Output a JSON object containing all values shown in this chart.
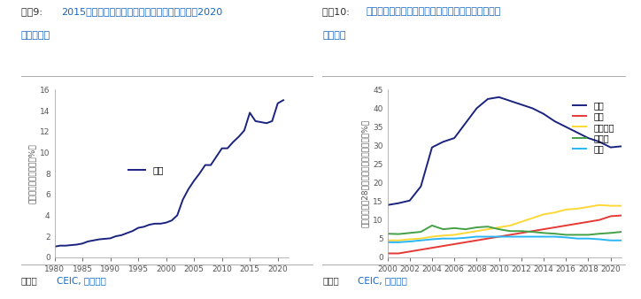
{
  "chart1": {
    "title_prefix": "图表9: ",
    "title_blue": "2015年后中国出口占全球出口的份额高位企稳，2020",
    "title_blue2": "年重拾反弹",
    "ylabel": "中国占全球市场份额（%）",
    "source_black": "来源：",
    "source_blue": "CEIC, 瑞银估算",
    "legend_label": "出口",
    "line_color": "#1a237e",
    "years": [
      1980,
      1981,
      1982,
      1983,
      1984,
      1985,
      1986,
      1987,
      1988,
      1989,
      1990,
      1991,
      1992,
      1993,
      1994,
      1995,
      1996,
      1997,
      1998,
      1999,
      2000,
      2001,
      2002,
      2003,
      2004,
      2005,
      2006,
      2007,
      2008,
      2009,
      2010,
      2011,
      2012,
      2013,
      2014,
      2015,
      2016,
      2017,
      2018,
      2019,
      2020,
      2021
    ],
    "values": [
      1.0,
      1.1,
      1.1,
      1.15,
      1.2,
      1.3,
      1.5,
      1.6,
      1.7,
      1.75,
      1.8,
      2.0,
      2.1,
      2.3,
      2.5,
      2.8,
      2.9,
      3.1,
      3.2,
      3.2,
      3.3,
      3.5,
      4.0,
      5.5,
      6.5,
      7.3,
      8.0,
      8.8,
      8.8,
      9.6,
      10.4,
      10.4,
      11.0,
      11.5,
      12.1,
      13.8,
      13.0,
      12.9,
      12.8,
      13.0,
      14.7,
      15.0
    ],
    "ylim": [
      0,
      16
    ],
    "yticks": [
      0,
      2,
      4,
      6,
      8,
      10,
      12,
      14,
      16
    ],
    "xlim": [
      1980,
      2022
    ],
    "xticks": [
      1980,
      1985,
      1990,
      1995,
      2000,
      2005,
      2010,
      2015,
      2020
    ]
  },
  "chart2": {
    "title_prefix": "图表10: ",
    "title_blue": "中国丧失服装市场份额，而越南和孟加拉国市场份额",
    "title_blue2": "有所上升",
    "ylabel": "在美国和欧盟28国服装进口市场中的份额（%）",
    "source_black": "来源：",
    "source_blue": "CEIC, 瑞银估算",
    "ylim": [
      0,
      45
    ],
    "yticks": [
      0,
      5,
      10,
      15,
      20,
      25,
      30,
      35,
      40,
      45
    ],
    "xlim": [
      2000,
      2021
    ],
    "xticks": [
      2000,
      2002,
      2004,
      2006,
      2008,
      2010,
      2012,
      2014,
      2016,
      2018,
      2020
    ],
    "series": {
      "中国": {
        "color": "#1a237e",
        "years": [
          2000,
          2001,
          2002,
          2003,
          2004,
          2005,
          2006,
          2007,
          2008,
          2009,
          2010,
          2011,
          2012,
          2013,
          2014,
          2015,
          2016,
          2017,
          2018,
          2019,
          2020,
          2021
        ],
        "values": [
          14.0,
          14.5,
          15.2,
          19.0,
          29.5,
          31.0,
          32.0,
          36.0,
          40.0,
          42.5,
          43.0,
          42.0,
          41.0,
          40.0,
          38.5,
          36.5,
          35.0,
          33.5,
          32.0,
          31.0,
          29.5,
          29.8
        ]
      },
      "越南": {
        "color": "#e53935",
        "years": [
          2000,
          2001,
          2002,
          2003,
          2004,
          2005,
          2006,
          2007,
          2008,
          2009,
          2010,
          2011,
          2012,
          2013,
          2014,
          2015,
          2016,
          2017,
          2018,
          2019,
          2020,
          2021
        ],
        "values": [
          1.0,
          1.0,
          1.5,
          2.0,
          2.5,
          3.0,
          3.5,
          4.0,
          4.5,
          5.0,
          5.5,
          6.0,
          6.5,
          7.0,
          7.5,
          8.0,
          8.5,
          9.0,
          9.5,
          10.0,
          11.0,
          11.2
        ]
      },
      "孟加拉国": {
        "color": "#fdd835",
        "years": [
          2000,
          2001,
          2002,
          2003,
          2004,
          2005,
          2006,
          2007,
          2008,
          2009,
          2010,
          2011,
          2012,
          2013,
          2014,
          2015,
          2016,
          2017,
          2018,
          2019,
          2020,
          2021
        ],
        "values": [
          4.5,
          4.5,
          4.8,
          5.0,
          5.5,
          5.8,
          6.0,
          6.5,
          7.0,
          7.5,
          8.0,
          8.5,
          9.5,
          10.5,
          11.5,
          12.0,
          12.8,
          13.0,
          13.5,
          14.0,
          13.8,
          13.8
        ]
      },
      "土耳其": {
        "color": "#43a047",
        "years": [
          2000,
          2001,
          2002,
          2003,
          2004,
          2005,
          2006,
          2007,
          2008,
          2009,
          2010,
          2011,
          2012,
          2013,
          2014,
          2015,
          2016,
          2017,
          2018,
          2019,
          2020,
          2021
        ],
        "values": [
          6.3,
          6.2,
          6.5,
          6.8,
          8.5,
          7.5,
          7.8,
          7.5,
          8.0,
          8.2,
          7.5,
          7.0,
          7.0,
          6.8,
          6.5,
          6.3,
          6.0,
          6.0,
          6.0,
          6.3,
          6.5,
          6.8
        ]
      },
      "印度": {
        "color": "#29b6f6",
        "years": [
          2000,
          2001,
          2002,
          2003,
          2004,
          2005,
          2006,
          2007,
          2008,
          2009,
          2010,
          2011,
          2012,
          2013,
          2014,
          2015,
          2016,
          2017,
          2018,
          2019,
          2020,
          2021
        ],
        "values": [
          4.0,
          4.0,
          4.2,
          4.5,
          4.8,
          5.0,
          5.0,
          5.2,
          5.5,
          5.5,
          5.5,
          5.5,
          5.5,
          5.5,
          5.5,
          5.5,
          5.3,
          5.0,
          5.0,
          4.8,
          4.5,
          4.5
        ]
      }
    }
  },
  "title_color_blue": "#1565c0",
  "title_color_black": "#2d2d2d",
  "source_color_blue": "#1565c0",
  "source_color_black": "#2d2d2d",
  "axis_color": "#aaaaaa",
  "tick_label_color": "#555555",
  "bg_color": "#ffffff"
}
